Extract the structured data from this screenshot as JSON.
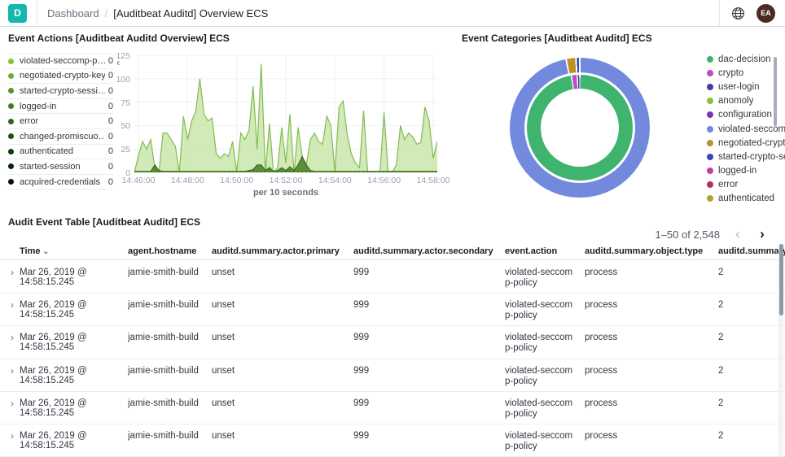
{
  "header": {
    "logo_letter": "D",
    "breadcrumb_root": "Dashboard",
    "breadcrumb_separator": "/",
    "breadcrumb_current": "[Auditbeat Auditd] Overview ECS",
    "avatar_initials": "EA",
    "accent_color": "#14b8ad",
    "avatar_color": "#4d2a22"
  },
  "icons": {
    "collapse_left": "‹",
    "expand_row": "›",
    "sort_desc": "⌄",
    "prev": "‹",
    "next": "›"
  },
  "panels": {
    "event_actions": {
      "title": "Event Actions [Auditbeat Auditd Overview] ECS",
      "legend": [
        {
          "label": "violated-seccomp-p…",
          "value": "0",
          "color": "#7fc63e"
        },
        {
          "label": "negotiated-crypto-key",
          "value": "0",
          "color": "#69ad36"
        },
        {
          "label": "started-crypto-sessi…",
          "value": "0",
          "color": "#54942e"
        },
        {
          "label": "logged-in",
          "value": "0",
          "color": "#417c26"
        },
        {
          "label": "error",
          "value": "0",
          "color": "#30641e"
        },
        {
          "label": "changed-promiscuo…",
          "value": "0",
          "color": "#214d16"
        },
        {
          "label": "authenticated",
          "value": "0",
          "color": "#14380e"
        },
        {
          "label": "started-session",
          "value": "0",
          "color": "#0a2407"
        },
        {
          "label": "acquired-credentials",
          "value": "0",
          "color": "#031200"
        }
      ]
    },
    "event_categories": {
      "title": "Event Categories [Auditbeat Auditd] ECS",
      "legend": [
        {
          "label": "dac-decision",
          "color": "#3eb46e"
        },
        {
          "label": "crypto",
          "color": "#b94ec3"
        },
        {
          "label": "user-login",
          "color": "#5434ad"
        },
        {
          "label": "anomoly",
          "color": "#8bc23c"
        },
        {
          "label": "configuration",
          "color": "#7a36b8"
        },
        {
          "label": "violated-seccomp…",
          "color": "#7289dd"
        },
        {
          "label": "negotiated-crypto…",
          "color": "#bb9225"
        },
        {
          "label": "started-crypto-se…",
          "color": "#3845bb"
        },
        {
          "label": "logged-in",
          "color": "#cb3d9c"
        },
        {
          "label": "error",
          "color": "#b72f52"
        },
        {
          "label": "authenticated",
          "color": "#b3a42b"
        }
      ]
    },
    "audit_table": {
      "title": "Audit Event Table [Auditbeat Auditd] ECS",
      "pagination": {
        "range": "1–50 of 2,548"
      },
      "columns": [
        {
          "label": "Time",
          "key": "time",
          "sorted": true
        },
        {
          "label": "agent.hostname",
          "key": "agent_hostname"
        },
        {
          "label": "auditd.summary.actor.primary",
          "key": "actor_primary"
        },
        {
          "label": "auditd.summary.actor.secondary",
          "key": "actor_secondary"
        },
        {
          "label": "event.action",
          "key": "event_action"
        },
        {
          "label": "auditd.summary.object.type",
          "key": "object_type"
        },
        {
          "label": "auditd.summary",
          "key": "summary"
        }
      ],
      "rows": [
        {
          "time": "Mar 26, 2019 @ 14:58:15.245",
          "agent_hostname": "jamie-smith-build",
          "actor_primary": "unset",
          "actor_secondary": "999",
          "event_action": "violated-seccomp-policy",
          "object_type": "process",
          "summary": "2"
        },
        {
          "time": "Mar 26, 2019 @ 14:58:15.245",
          "agent_hostname": "jamie-smith-build",
          "actor_primary": "unset",
          "actor_secondary": "999",
          "event_action": "violated-seccomp-policy",
          "object_type": "process",
          "summary": "2"
        },
        {
          "time": "Mar 26, 2019 @ 14:58:15.245",
          "agent_hostname": "jamie-smith-build",
          "actor_primary": "unset",
          "actor_secondary": "999",
          "event_action": "violated-seccomp-policy",
          "object_type": "process",
          "summary": "2"
        },
        {
          "time": "Mar 26, 2019 @ 14:58:15.245",
          "agent_hostname": "jamie-smith-build",
          "actor_primary": "unset",
          "actor_secondary": "999",
          "event_action": "violated-seccomp-policy",
          "object_type": "process",
          "summary": "2"
        },
        {
          "time": "Mar 26, 2019 @ 14:58:15.245",
          "agent_hostname": "jamie-smith-build",
          "actor_primary": "unset",
          "actor_secondary": "999",
          "event_action": "violated-seccomp-policy",
          "object_type": "process",
          "summary": "2"
        },
        {
          "time": "Mar 26, 2019 @ 14:58:15.245",
          "agent_hostname": "jamie-smith-build",
          "actor_primary": "unset",
          "actor_secondary": "999",
          "event_action": "violated-seccomp-policy",
          "object_type": "process",
          "summary": "2"
        }
      ]
    }
  },
  "chart_data": [
    {
      "type": "area",
      "title": "Event Actions [Auditbeat Auditd Overview] ECS",
      "xlabel": "per 10 seconds",
      "ylabel": "",
      "ylim": [
        0,
        125
      ],
      "y_ticks": [
        0,
        25,
        50,
        75,
        100,
        125
      ],
      "x_ticks": [
        "14:46:00",
        "14:48:00",
        "14:50:00",
        "14:52:00",
        "14:54:00",
        "14:56:00",
        "14:58:00"
      ],
      "x_tick_indices": [
        1,
        13,
        25,
        37,
        49,
        61,
        73
      ],
      "x_start": "14:45:50",
      "x_step_seconds": 10,
      "grid": true,
      "series": [
        {
          "name": "events",
          "stroke": "#82bb4f",
          "fill": "#c9e6ab",
          "values": [
            0,
            18,
            33,
            25,
            35,
            5,
            0,
            42,
            42,
            35,
            28,
            0,
            60,
            35,
            55,
            65,
            100,
            62,
            55,
            58,
            20,
            15,
            20,
            17,
            33,
            0,
            42,
            35,
            45,
            92,
            25,
            116,
            0,
            52,
            0,
            5,
            48,
            10,
            62,
            0,
            48,
            17,
            8,
            35,
            42,
            33,
            30,
            60,
            50,
            0,
            70,
            76,
            40,
            20,
            10,
            5,
            66,
            0,
            0,
            0,
            0,
            64,
            0,
            0,
            8,
            50,
            35,
            42,
            38,
            30,
            32,
            70,
            55,
            15,
            33
          ]
        },
        {
          "name": "events-secondary",
          "stroke": "#3c6b1f",
          "fill": "#477d27",
          "values": [
            1,
            1,
            1,
            1,
            1,
            8,
            2,
            1,
            1,
            1,
            1,
            1,
            1,
            1,
            1,
            1,
            1,
            1,
            1,
            1,
            1,
            1,
            1,
            1,
            1,
            1,
            1,
            1,
            2,
            3,
            8,
            8,
            2,
            5,
            1,
            2,
            5,
            2,
            6,
            2,
            8,
            17,
            8,
            2,
            1,
            1,
            1,
            1,
            1,
            1,
            1,
            1,
            1,
            1,
            1,
            1,
            1,
            1,
            1,
            1,
            1,
            1,
            1,
            1,
            1,
            1,
            1,
            1,
            1,
            1,
            1,
            1,
            1,
            1,
            1
          ]
        }
      ]
    },
    {
      "type": "pie",
      "title": "Event Categories [Auditbeat Auditd] ECS",
      "legend_position": "right",
      "rings": [
        {
          "name": "inner",
          "segments": [
            {
              "label": "dac-decision",
              "color": "#3eb46e",
              "value": 98.2
            },
            {
              "label": "crypto",
              "color": "#b94ec3",
              "value": 1.4
            },
            {
              "label": "user-login",
              "color": "#5434ad",
              "value": 0.4
            }
          ]
        },
        {
          "name": "outer",
          "segments": [
            {
              "label": "violated-seccomp-policy",
              "color": "#7289dd",
              "value": 97.6
            },
            {
              "label": "negotiated-crypto-key",
              "color": "#bb9225",
              "value": 1.9
            },
            {
              "label": "started-crypto-session",
              "color": "#3845bb",
              "value": 0.5
            }
          ]
        }
      ]
    }
  ]
}
